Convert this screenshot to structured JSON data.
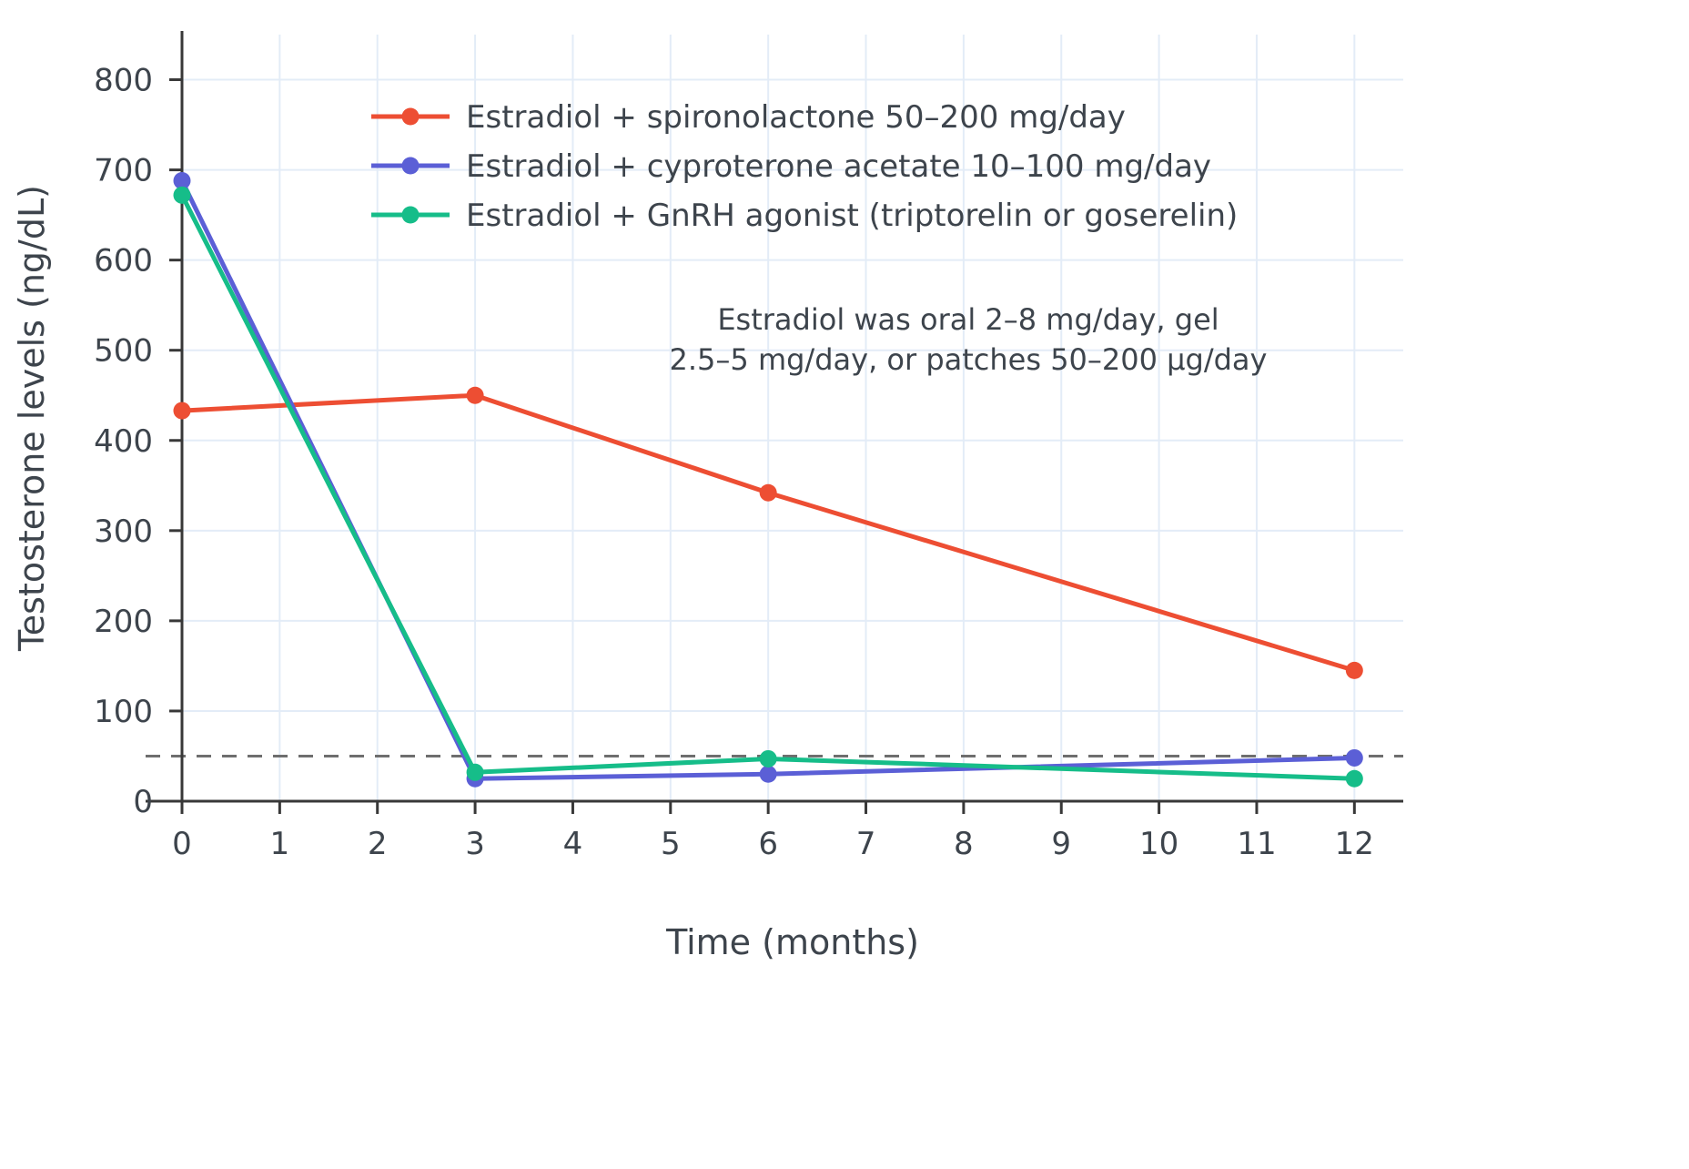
{
  "chart_data": {
    "type": "line",
    "title": "",
    "xlabel": "Time (months)",
    "ylabel": "Testosterone levels (ng/dL)",
    "x": [
      0,
      3,
      6,
      12
    ],
    "series": [
      {
        "name": "Estradiol + spironolactone 50–200 mg/day",
        "color": "#ed4e33",
        "values": [
          433,
          450,
          342,
          145
        ]
      },
      {
        "name": "Estradiol + cyproterone acetate 10–100 mg/day",
        "color": "#5b5fd6",
        "values": [
          688,
          25,
          30,
          48
        ]
      },
      {
        "name": "Estradiol + GnRH agonist (triptorelin or goserelin)",
        "color": "#16bd89",
        "values": [
          672,
          32,
          47,
          25
        ]
      }
    ],
    "reference_line": {
      "y": 50,
      "style": "dashed",
      "color": "#6e6e6e"
    },
    "annotation_lines": [
      "Estradiol was oral 2–8 mg/day, gel",
      "2.5–5 mg/day, or patches 50–200 µg/day"
    ],
    "x_ticks": [
      0,
      1,
      2,
      3,
      4,
      5,
      6,
      7,
      8,
      9,
      10,
      11,
      12
    ],
    "y_ticks": [
      0,
      100,
      200,
      300,
      400,
      500,
      600,
      700,
      800
    ],
    "xlim": [
      0,
      12.5
    ],
    "ylim": [
      0,
      850
    ],
    "grid": true,
    "legend_position": "inside-top-left",
    "colors": {
      "grid": "#e3ecf7",
      "axis": "#383838",
      "text": "#3d444c",
      "background": "#ffffff"
    }
  }
}
